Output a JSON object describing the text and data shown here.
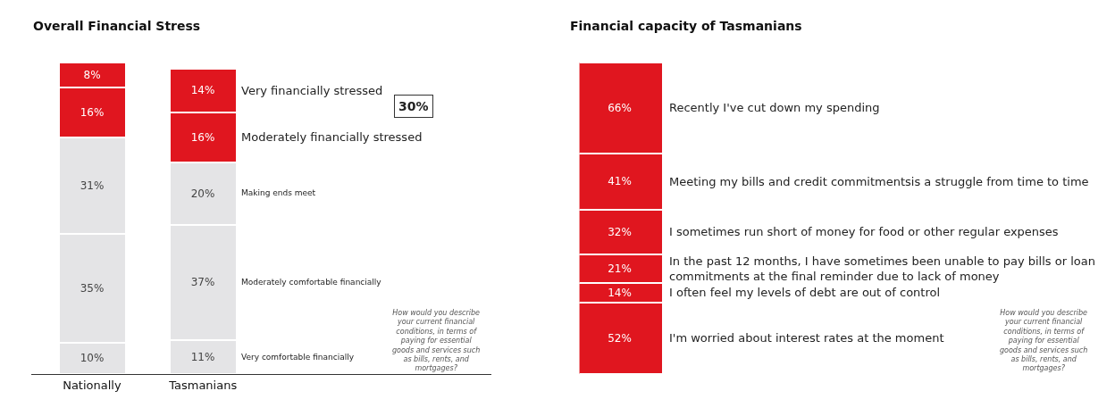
{
  "chart_data": [
    {
      "type": "bar",
      "title": "Overall Financial Stress",
      "stacked": true,
      "categories": [
        "Nationally",
        "Tasmanians"
      ],
      "series": [
        {
          "name": "Very comfortable financially",
          "color": "#e4e4e6",
          "values": [
            10,
            11
          ],
          "value_labels": [
            "10%",
            "11%"
          ]
        },
        {
          "name": "Moderately comfortable financially",
          "color": "#e4e4e6",
          "values": [
            35,
            37
          ],
          "value_labels": [
            "35%",
            "37%"
          ]
        },
        {
          "name": "Making ends meet",
          "color": "#e4e4e6",
          "values": [
            31,
            20
          ],
          "value_labels": [
            "31%",
            "20%"
          ]
        },
        {
          "name": "Moderately financially stressed",
          "color": "#e0161f",
          "values": [
            16,
            16
          ],
          "value_labels": [
            "16%",
            "16%"
          ]
        },
        {
          "name": "Very financially stressed",
          "color": "#e0161f",
          "values": [
            8,
            14
          ],
          "value_labels": [
            "8%",
            "14%"
          ]
        }
      ],
      "annotations": [
        "30%",
        "How would you describe your current financial conditions, in terms of paying for essential goods and services such as bills, rents, and mortgages?"
      ]
    },
    {
      "type": "bar",
      "title": "Financial capacity of Tasmanians",
      "stacked": true,
      "categories": [
        null
      ],
      "series": [
        {
          "name": "I'm worried about interest rates at the moment",
          "color": "#e0161f",
          "values": [
            52
          ],
          "value_labels": [
            "52%"
          ]
        },
        {
          "name": "I often feel my levels of debt are out of control",
          "color": "#e0161f",
          "values": [
            14
          ],
          "value_labels": [
            "14%"
          ]
        },
        {
          "name": "In the past 12 months, I have sometimes been unable to pay bills or loan commitments at the final reminder due to lack of money",
          "color": "#e0161f",
          "values": [
            21
          ],
          "value_labels": [
            "21%"
          ]
        },
        {
          "name": "I sometimes run short of money for food or other regular expenses",
          "color": "#e0161f",
          "values": [
            32
          ],
          "value_labels": [
            "32%"
          ]
        },
        {
          "name": "Meeting my bills and credit commitmentsis a struggle from time to time",
          "color": "#e0161f",
          "values": [
            41
          ],
          "value_labels": [
            "41%"
          ]
        },
        {
          "name": "Recently I've cut down my spending",
          "color": "#e0161f",
          "values": [
            66
          ],
          "value_labels": [
            "66%"
          ]
        }
      ],
      "annotations": [
        "How would you describe your current financial conditions, in terms of paying for essential goods and services such as bills, rents, and mortgages?"
      ]
    }
  ]
}
